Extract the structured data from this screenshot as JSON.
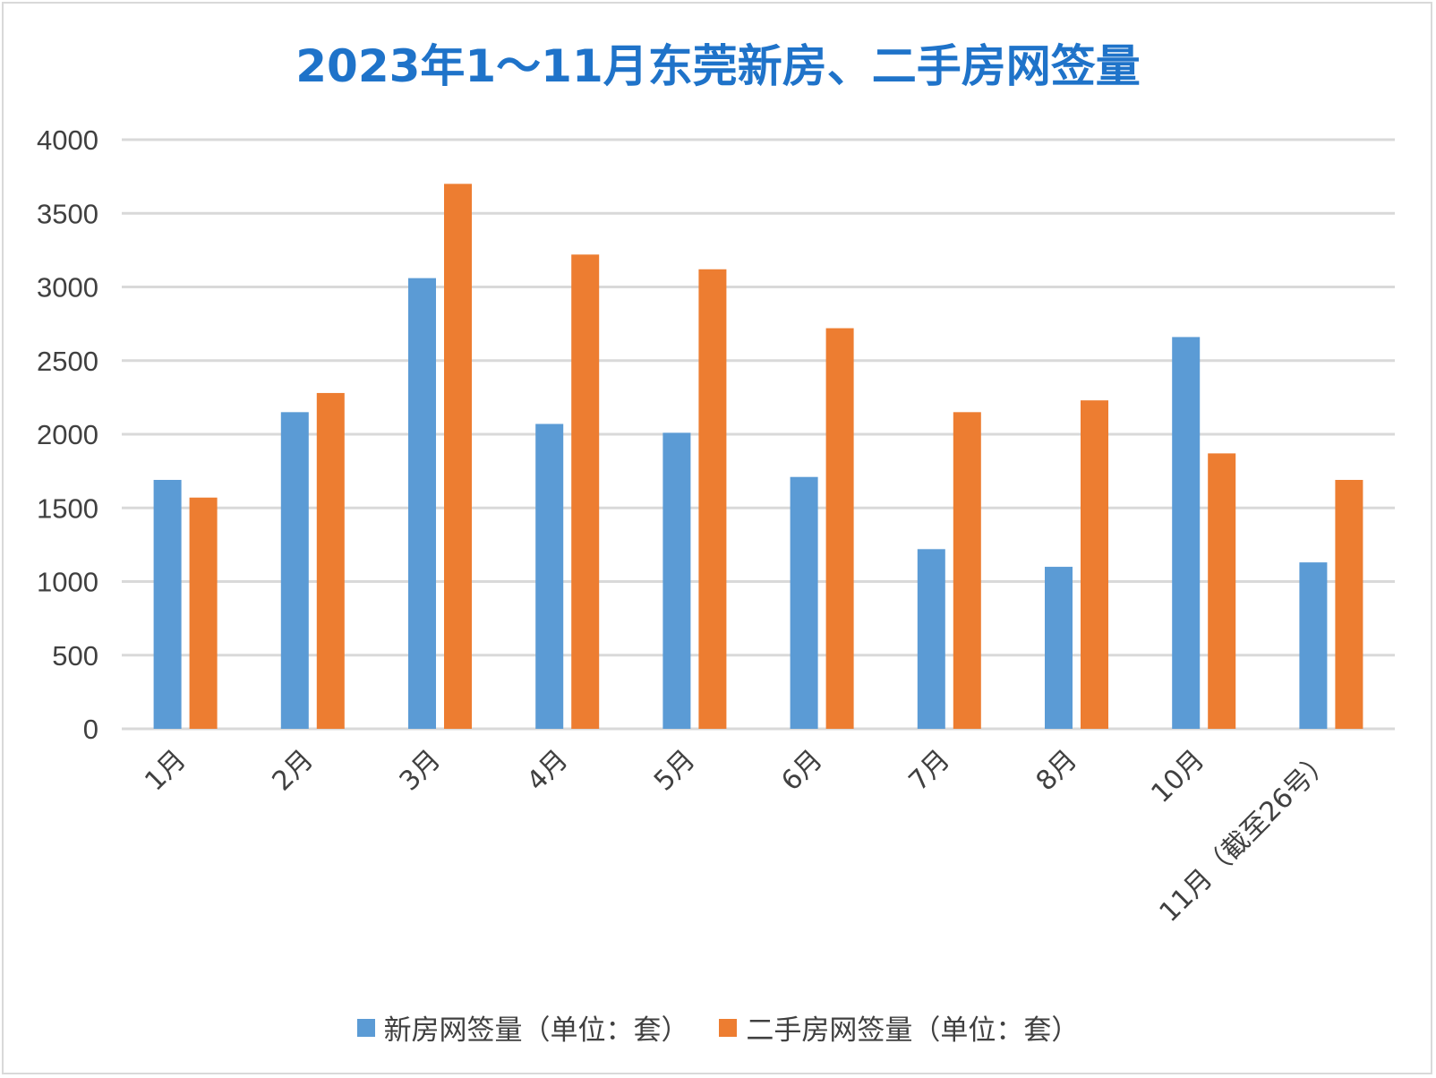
{
  "chart_data": {
    "type": "bar",
    "title": "2023年1～11月东莞新房、二手房网签量",
    "categories": [
      "1月",
      "2月",
      "3月",
      "4月",
      "5月",
      "6月",
      "7月",
      "8月",
      "10月",
      "11月（截至26号）"
    ],
    "series": [
      {
        "name": "新房网签量（单位：套）",
        "color": "#5b9bd5",
        "values": [
          1690,
          2150,
          3060,
          2070,
          2010,
          1710,
          1220,
          1100,
          2660,
          1130
        ]
      },
      {
        "name": "二手房网签量（单位：套）",
        "color": "#ed7d31",
        "values": [
          1570,
          2280,
          3700,
          3220,
          3120,
          2720,
          2150,
          2230,
          1870,
          1690
        ]
      }
    ],
    "yticks": [
      0,
      500,
      1000,
      1500,
      2000,
      2500,
      3000,
      3500,
      4000
    ],
    "ylim": [
      0,
      4000
    ],
    "grid": true,
    "legend_position": "bottom"
  }
}
